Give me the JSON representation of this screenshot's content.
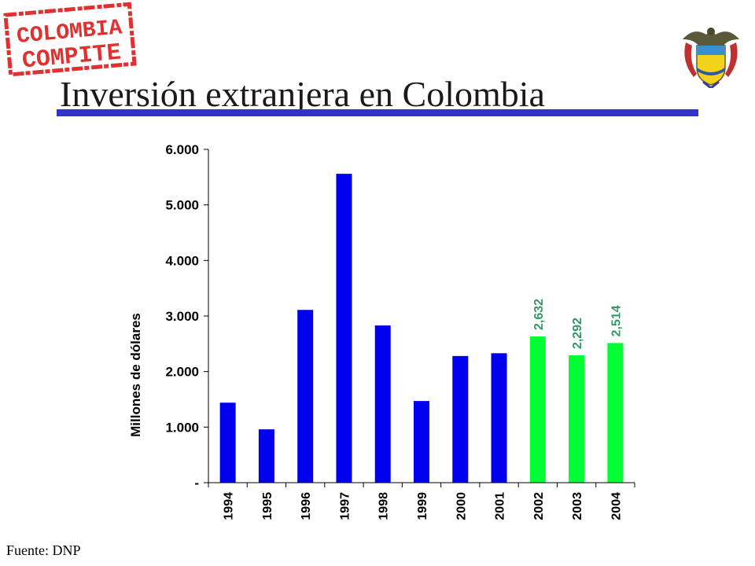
{
  "logo": {
    "line1": "COLOMBIA",
    "line2": "COMPITE",
    "color": "#e03030"
  },
  "emblem": {
    "icon": "colombia-coat-of-arms-icon"
  },
  "title": "Inversión extranjera en Colombia",
  "source": "Fuente: DNP",
  "colors": {
    "title_rule": "#3333cc",
    "bar_primary": "#0000ee",
    "bar_highlight": "#00ff33",
    "label_highlight": "#339966"
  },
  "chart_data": {
    "type": "bar",
    "title": "",
    "xlabel": "",
    "ylabel": "Millones de dólares",
    "categories": [
      "1994",
      "1995",
      "1996",
      "1997",
      "1998",
      "1999",
      "2000",
      "2001",
      "2002",
      "2003",
      "2004"
    ],
    "values": [
      1440,
      960,
      3110,
      5560,
      2830,
      1470,
      2280,
      2330,
      2632,
      2292,
      2514
    ],
    "highlighted": [
      false,
      false,
      false,
      false,
      false,
      false,
      false,
      false,
      true,
      true,
      true
    ],
    "data_labels": [
      "",
      "",
      "",
      "",
      "",
      "",
      "",
      "",
      "2,632",
      "2,292",
      "2,514"
    ],
    "ylim": [
      0,
      6000
    ],
    "yticks": [
      0,
      1000,
      2000,
      3000,
      4000,
      5000,
      6000
    ],
    "ytick_labels": [
      "-",
      "1.000",
      "2.000",
      "3.000",
      "4.000",
      "5.000",
      "6.000"
    ],
    "grid": false,
    "legend": "none"
  }
}
